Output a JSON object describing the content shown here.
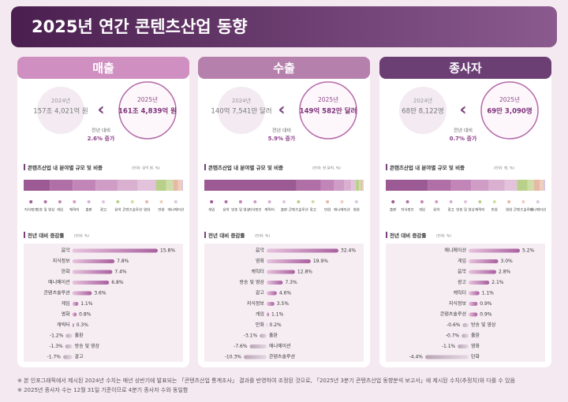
{
  "title": "2025년 연간 콘텐츠산업 동향",
  "colors": [
    "#9b5a93",
    "#b06fa6",
    "#c285b8",
    "#cf9cc5",
    "#d9b0d0",
    "#e3c3dc",
    "#b9d08a",
    "#cfdda8",
    "#e6b8a6",
    "#f0cdb8",
    "#d8c7e0"
  ],
  "panels": [
    {
      "heading": "매출",
      "prev": {
        "year": "2024년",
        "value": "157조 4,021억 원"
      },
      "curr": {
        "year": "2025년",
        "value": "161조 4,839억 원"
      },
      "change_label": "전년 대비",
      "change": "2.6% 증가",
      "share_title": "콘텐츠산업 내 분야별 규모 및 비중",
      "share_unit": "(단위: 십억 원, %)",
      "share_categories": [
        "지식정보",
        "방송 및 영상",
        "게임",
        "캐릭터",
        "출판",
        "광고",
        "음악",
        "콘텐츠솔루션",
        "영화",
        "만화",
        "애니메이션"
      ],
      "share_values": [
        16.5,
        14.3,
        14.3,
        13.8,
        12.6,
        11.4,
        6.5,
        4.5,
        3.0,
        2.0,
        1.1
      ],
      "growth_title": "전년 대비 증감률",
      "growth_unit": "(단위: %)",
      "growth_categories": [
        "음악",
        "지식정보",
        "만화",
        "애니메이션",
        "콘텐츠솔루션",
        "게임",
        "영화",
        "캐릭터",
        "출판",
        "방송 및 영상",
        "광고"
      ],
      "growth_values": [
        15.8,
        7.8,
        7.4,
        6.8,
        3.6,
        1.1,
        0.8,
        0.3,
        -1.2,
        -1.3,
        -1.7
      ],
      "growth_value_labels": [
        "15.8%",
        "7.8%",
        "7.4%",
        "6.8%",
        "3.6%",
        "1.1%",
        "0.8%",
        "0.3%",
        "-1.2%",
        "-1.3%",
        "-1.7%"
      ]
    },
    {
      "heading": "수출",
      "prev": {
        "year": "2024년",
        "value": "140억 7,541만 달러"
      },
      "curr": {
        "year": "2025년",
        "value": "149억 582만 달러"
      },
      "change_label": "전년 대비",
      "change": "5.9% 증가",
      "share_title": "콘텐츠산업 내 분야별 규모 및 비중",
      "share_unit": "(단위: 천 달러, %)",
      "share_categories": [
        "게임",
        "음악",
        "방송 및 영상",
        "지식정보",
        "캐릭터",
        "출판",
        "콘텐츠솔루션",
        "광고",
        "만화",
        "애니메이션",
        "영화"
      ],
      "share_values": [
        57.7,
        15.3,
        8.4,
        6.4,
        4.4,
        2.9,
        2.0,
        1.2,
        0.8,
        0.6,
        0.3
      ],
      "growth_title": "전년 대비 증감률",
      "growth_unit": "(단위: %)",
      "growth_categories": [
        "음악",
        "영화",
        "캐릭터",
        "방송 및 영상",
        "광고",
        "지식정보",
        "게임",
        "만화",
        "출판",
        "애니메이션",
        "콘텐츠솔루션"
      ],
      "growth_values": [
        32.4,
        19.9,
        12.8,
        7.3,
        4.6,
        3.5,
        1.1,
        0.2,
        -3.1,
        -7.6,
        -10.3
      ],
      "growth_value_labels": [
        "32.4%",
        "19.9%",
        "12.8%",
        "7.3%",
        "4.6%",
        "3.5%",
        "1.1%",
        "0.2%",
        "-3.1%",
        "-7.6%",
        "-10.3%"
      ]
    },
    {
      "heading": "종사자",
      "prev": {
        "year": "2024년",
        "value": "68만 8,122명"
      },
      "curr": {
        "year": "2025년",
        "value": "69만 3,090명"
      },
      "change_label": "전년 대비",
      "change": "0.7% 증가",
      "share_title": "콘텐츠산업 내 분야별 규모 및 비중",
      "share_unit": "(단위: 명, %)",
      "share_categories": [
        "출판",
        "지식정보",
        "게임",
        "음악",
        "광고",
        "방송 및 영상",
        "캐릭터",
        "만화",
        "영화",
        "콘텐츠솔루션",
        "애니메이션"
      ],
      "share_values": [
        26.4,
        14.5,
        12.6,
        11.2,
        10.0,
        7.6,
        6.7,
        4.0,
        3.5,
        2.2,
        1.3
      ],
      "growth_title": "전년 대비 증감률",
      "growth_unit": "(단위: %)",
      "growth_categories": [
        "애니메이션",
        "게임",
        "음악",
        "광고",
        "캐릭터",
        "지식정보",
        "콘텐츠솔루션",
        "방송 및 영상",
        "출판",
        "영화",
        "만화"
      ],
      "growth_values": [
        5.2,
        3.0,
        2.8,
        2.1,
        1.1,
        0.9,
        0.9,
        -0.6,
        -0.7,
        -1.1,
        -4.4
      ],
      "growth_value_labels": [
        "5.2%",
        "3.0%",
        "2.8%",
        "2.1%",
        "1.1%",
        "0.9%",
        "0.9%",
        "-0.6%",
        "-0.7%",
        "-1.1%",
        "-4.4%"
      ]
    }
  ],
  "footnotes": [
    "※ 본 인포그래픽에서 제시된 2024년 수치는 매년 상반기에 발표되는 「콘텐츠산업 통계조사」 결과를 반영하여 조정된 것으로, 「2025년 3분기 콘텐츠산업 동향분석 보고서」에 제시된 수치(추정치)와 다를 수 있음",
    "※ 2025년 종사자 수는 12월 31일 기준이므로 4분기 종사자 수와 동일함"
  ]
}
